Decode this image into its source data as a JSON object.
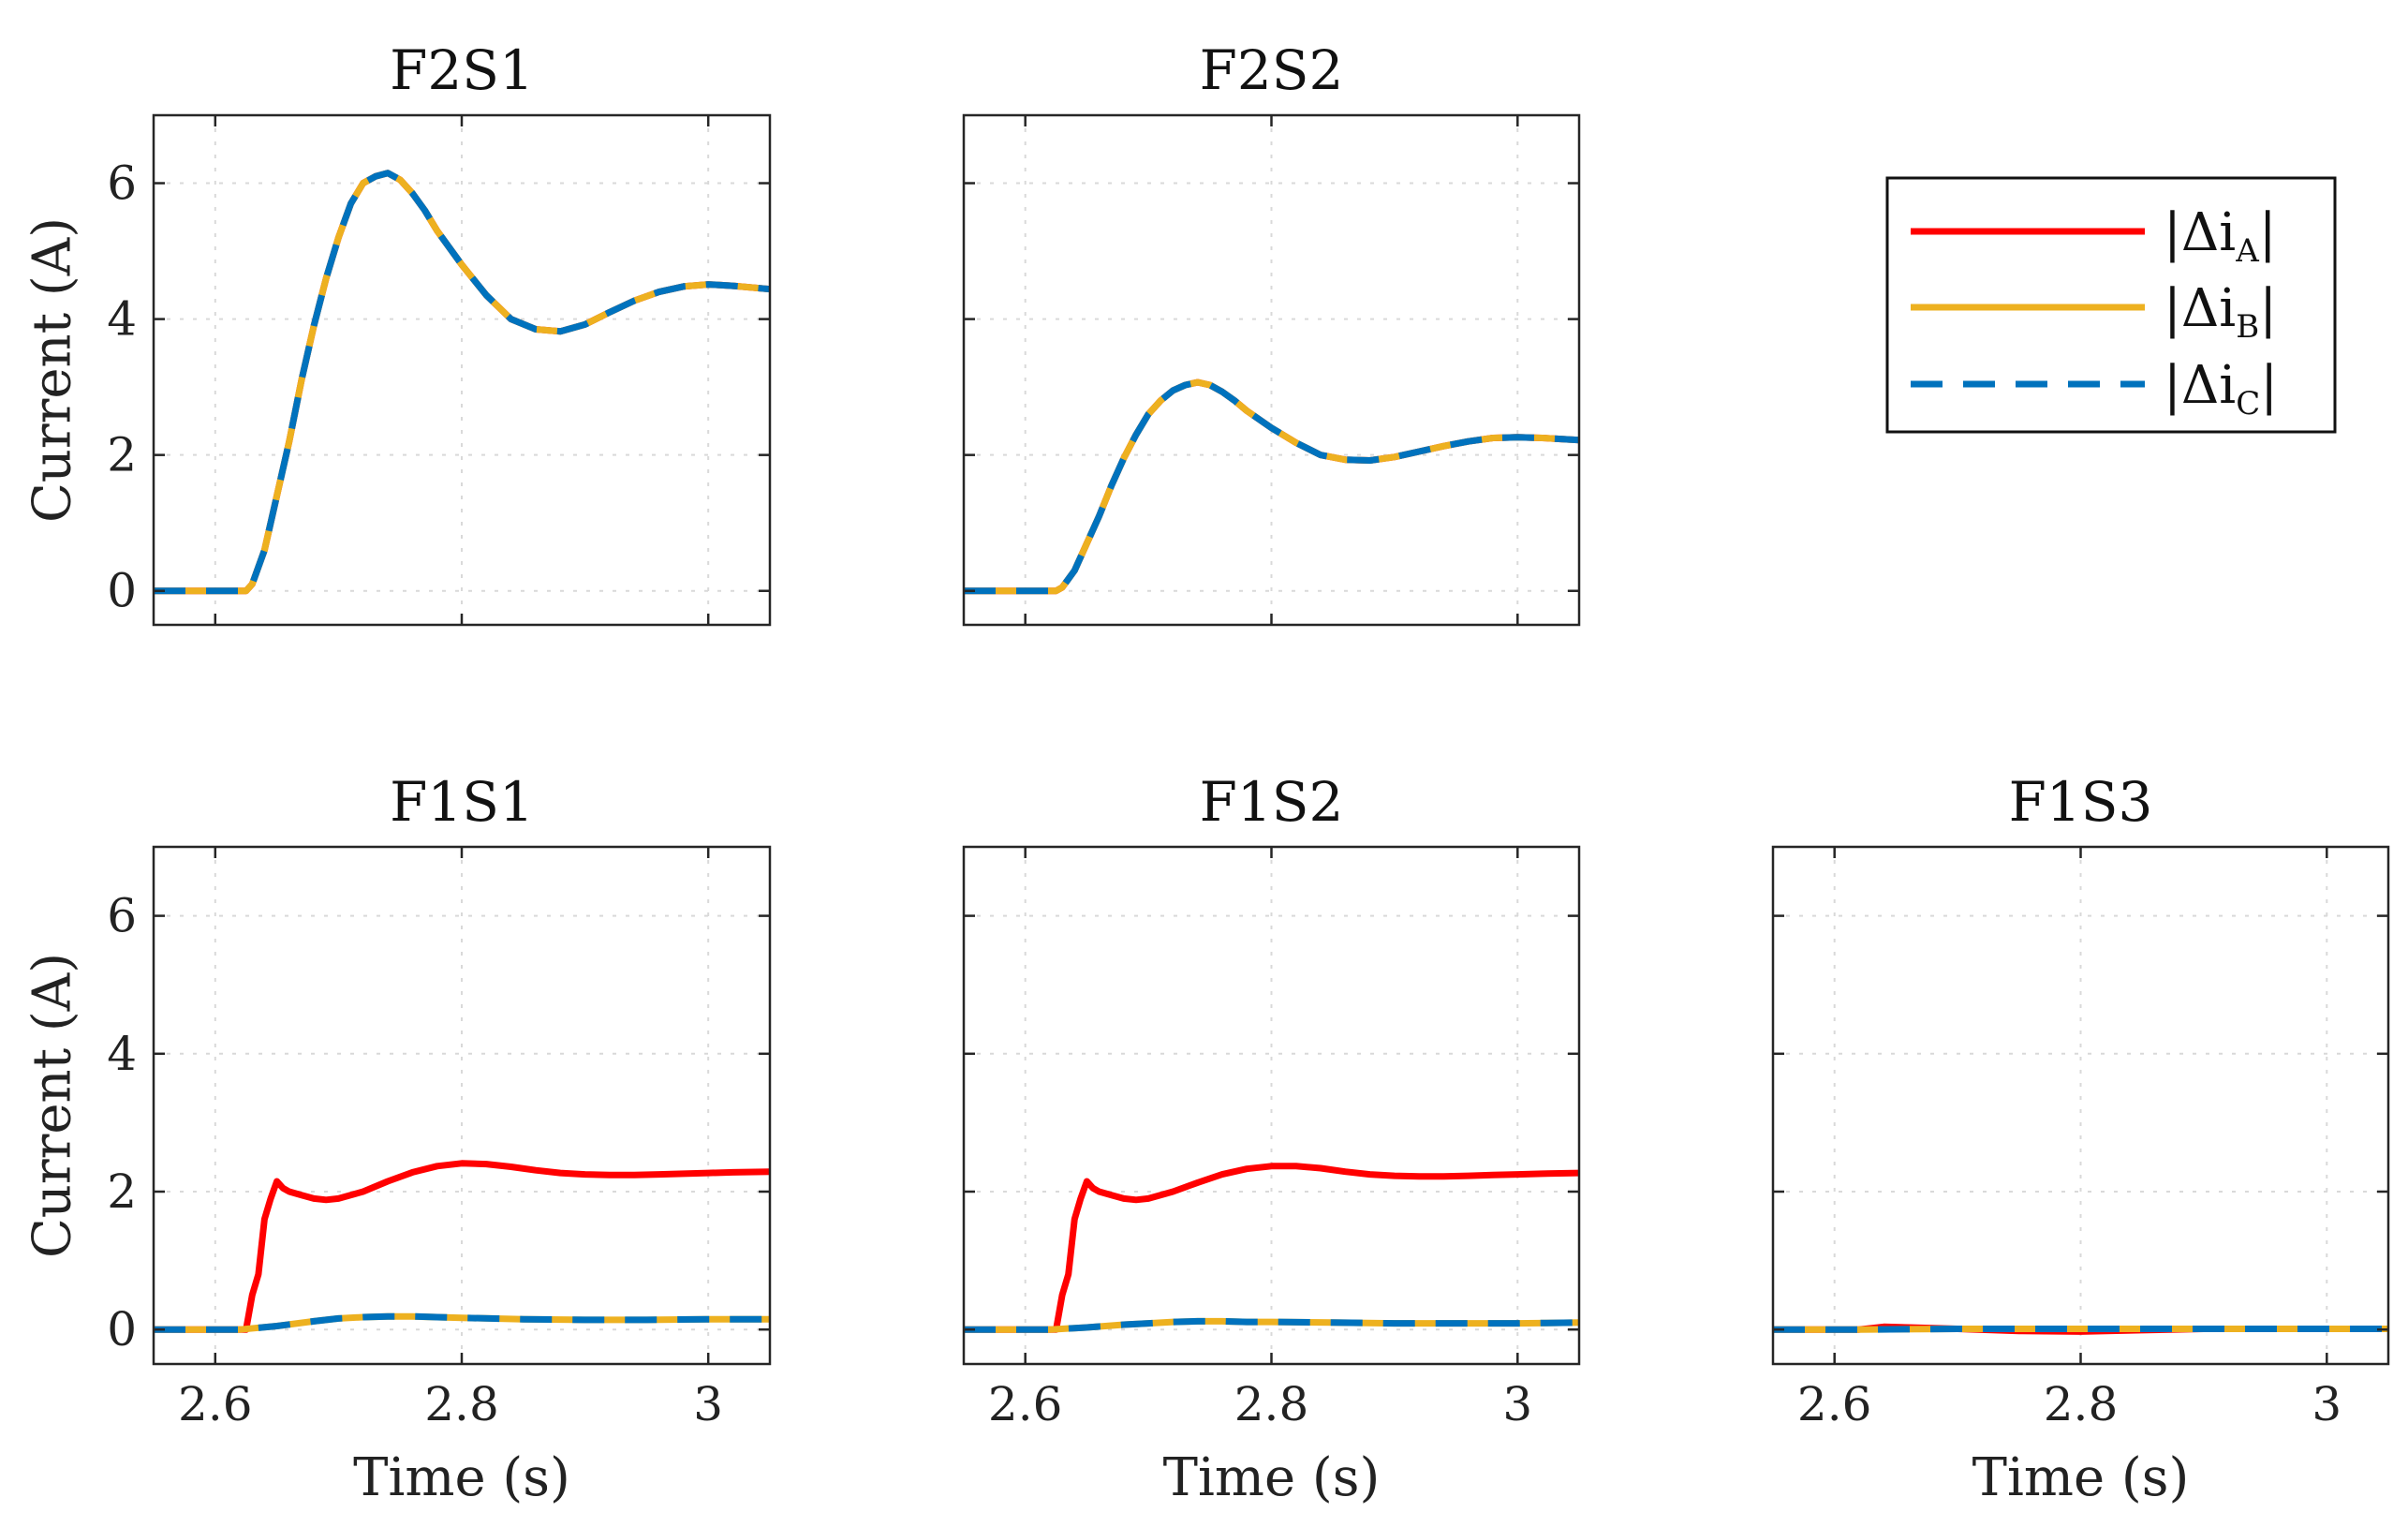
{
  "chart_data": {
    "type": "line",
    "xlim": [
      2.55,
      3.05
    ],
    "ylim": [
      -0.5,
      7
    ],
    "xticks": [
      2.6,
      2.8,
      3
    ],
    "xtick_labels": [
      "2.6",
      "2.8",
      "3"
    ],
    "yticks": [
      0,
      2,
      4,
      6
    ],
    "ytick_labels": [
      "0",
      "2",
      "4",
      "6"
    ],
    "xlabel": "Time (s)",
    "ylabel": "Current (A)",
    "grid": true,
    "legend": {
      "placement": "top-right",
      "entries": [
        {
          "symbol": "|Δi",
          "subscript": "A",
          "close": "|",
          "color": "#ff0000",
          "style": "solid"
        },
        {
          "symbol": "|Δi",
          "subscript": "B",
          "close": "|",
          "color": "#edb120",
          "style": "solid"
        },
        {
          "symbol": "|Δi",
          "subscript": "C",
          "close": "|",
          "color": "#0072bd",
          "style": "dashed"
        }
      ]
    },
    "panels": [
      {
        "title": "F2S1",
        "series": [
          {
            "name": "A",
            "color": "#ff0000",
            "style": "solid",
            "x": [
              2.55,
              2.625,
              2.63,
              2.64,
              2.65,
              2.66,
              2.67,
              2.68,
              2.69,
              2.7,
              2.71,
              2.72,
              2.73,
              2.74,
              2.75,
              2.76,
              2.77,
              2.78,
              2.8,
              2.82,
              2.84,
              2.86,
              2.88,
              2.9,
              2.92,
              2.94,
              2.96,
              2.98,
              3.0,
              3.02,
              3.05
            ],
            "y": [
              0,
              0,
              0.1,
              0.6,
              1.4,
              2.2,
              3.1,
              3.9,
              4.6,
              5.2,
              5.7,
              6.0,
              6.1,
              6.15,
              6.05,
              5.85,
              5.6,
              5.3,
              4.8,
              4.35,
              4.0,
              3.85,
              3.82,
              3.92,
              4.1,
              4.27,
              4.4,
              4.48,
              4.51,
              4.49,
              4.44
            ]
          },
          {
            "name": "B",
            "color": "#edb120",
            "style": "solid",
            "x": [
              2.55,
              2.625,
              2.63,
              2.64,
              2.65,
              2.66,
              2.67,
              2.68,
              2.69,
              2.7,
              2.71,
              2.72,
              2.73,
              2.74,
              2.75,
              2.76,
              2.77,
              2.78,
              2.8,
              2.82,
              2.84,
              2.86,
              2.88,
              2.9,
              2.92,
              2.94,
              2.96,
              2.98,
              3.0,
              3.02,
              3.05
            ],
            "y": [
              0,
              0,
              0.1,
              0.6,
              1.4,
              2.2,
              3.1,
              3.9,
              4.6,
              5.2,
              5.7,
              6.0,
              6.1,
              6.15,
              6.05,
              5.85,
              5.6,
              5.3,
              4.8,
              4.35,
              4.0,
              3.85,
              3.82,
              3.92,
              4.1,
              4.27,
              4.4,
              4.48,
              4.51,
              4.49,
              4.44
            ]
          },
          {
            "name": "C",
            "color": "#0072bd",
            "style": "dashed",
            "x": [
              2.55,
              2.625,
              2.63,
              2.64,
              2.65,
              2.66,
              2.67,
              2.68,
              2.69,
              2.7,
              2.71,
              2.72,
              2.73,
              2.74,
              2.75,
              2.76,
              2.77,
              2.78,
              2.8,
              2.82,
              2.84,
              2.86,
              2.88,
              2.9,
              2.92,
              2.94,
              2.96,
              2.98,
              3.0,
              3.02,
              3.05
            ],
            "y": [
              0,
              0,
              0.1,
              0.6,
              1.4,
              2.2,
              3.1,
              3.9,
              4.6,
              5.2,
              5.7,
              6.0,
              6.1,
              6.15,
              6.05,
              5.85,
              5.6,
              5.3,
              4.8,
              4.35,
              4.0,
              3.85,
              3.82,
              3.92,
              4.1,
              4.27,
              4.4,
              4.48,
              4.51,
              4.49,
              4.44
            ]
          }
        ]
      },
      {
        "title": "F2S2",
        "series": [
          {
            "name": "A",
            "color": "#ff0000",
            "style": "solid",
            "x": [
              2.55,
              2.625,
              2.63,
              2.64,
              2.65,
              2.66,
              2.67,
              2.68,
              2.69,
              2.7,
              2.71,
              2.72,
              2.73,
              2.74,
              2.75,
              2.76,
              2.77,
              2.78,
              2.8,
              2.82,
              2.84,
              2.86,
              2.88,
              2.9,
              2.92,
              2.94,
              2.96,
              2.98,
              3.0,
              3.02,
              3.05
            ],
            "y": [
              0,
              0,
              0.05,
              0.3,
              0.7,
              1.1,
              1.55,
              1.95,
              2.3,
              2.6,
              2.8,
              2.95,
              3.03,
              3.07,
              3.03,
              2.93,
              2.8,
              2.65,
              2.4,
              2.18,
              2.0,
              1.93,
              1.92,
              1.97,
              2.05,
              2.13,
              2.2,
              2.25,
              2.26,
              2.25,
              2.22
            ]
          },
          {
            "name": "B",
            "color": "#edb120",
            "style": "solid",
            "x": [
              2.55,
              2.625,
              2.63,
              2.64,
              2.65,
              2.66,
              2.67,
              2.68,
              2.69,
              2.7,
              2.71,
              2.72,
              2.73,
              2.74,
              2.75,
              2.76,
              2.77,
              2.78,
              2.8,
              2.82,
              2.84,
              2.86,
              2.88,
              2.9,
              2.92,
              2.94,
              2.96,
              2.98,
              3.0,
              3.02,
              3.05
            ],
            "y": [
              0,
              0,
              0.05,
              0.3,
              0.7,
              1.1,
              1.55,
              1.95,
              2.3,
              2.6,
              2.8,
              2.95,
              3.03,
              3.07,
              3.03,
              2.93,
              2.8,
              2.65,
              2.4,
              2.18,
              2.0,
              1.93,
              1.92,
              1.97,
              2.05,
              2.13,
              2.2,
              2.25,
              2.26,
              2.25,
              2.22
            ]
          },
          {
            "name": "C",
            "color": "#0072bd",
            "style": "dashed",
            "x": [
              2.55,
              2.625,
              2.63,
              2.64,
              2.65,
              2.66,
              2.67,
              2.68,
              2.69,
              2.7,
              2.71,
              2.72,
              2.73,
              2.74,
              2.75,
              2.76,
              2.77,
              2.78,
              2.8,
              2.82,
              2.84,
              2.86,
              2.88,
              2.9,
              2.92,
              2.94,
              2.96,
              2.98,
              3.0,
              3.02,
              3.05
            ],
            "y": [
              0,
              0,
              0.05,
              0.3,
              0.7,
              1.1,
              1.55,
              1.95,
              2.3,
              2.6,
              2.8,
              2.95,
              3.03,
              3.07,
              3.03,
              2.93,
              2.8,
              2.65,
              2.4,
              2.18,
              2.0,
              1.93,
              1.92,
              1.97,
              2.05,
              2.13,
              2.2,
              2.25,
              2.26,
              2.25,
              2.22
            ]
          }
        ]
      },
      {
        "title": "F1S1",
        "series": [
          {
            "name": "A",
            "color": "#ff0000",
            "style": "solid",
            "x": [
              2.55,
              2.625,
              2.63,
              2.635,
              2.64,
              2.645,
              2.65,
              2.655,
              2.66,
              2.67,
              2.68,
              2.69,
              2.7,
              2.72,
              2.74,
              2.76,
              2.78,
              2.8,
              2.82,
              2.84,
              2.86,
              2.88,
              2.9,
              2.92,
              2.94,
              2.96,
              2.98,
              3.0,
              3.02,
              3.05
            ],
            "y": [
              0,
              0,
              0.5,
              0.8,
              1.6,
              1.9,
              2.15,
              2.05,
              2.0,
              1.95,
              1.9,
              1.88,
              1.9,
              2.0,
              2.15,
              2.28,
              2.37,
              2.41,
              2.4,
              2.36,
              2.31,
              2.27,
              2.25,
              2.24,
              2.24,
              2.25,
              2.26,
              2.27,
              2.28,
              2.29
            ]
          },
          {
            "name": "B",
            "color": "#edb120",
            "style": "solid",
            "x": [
              2.55,
              2.62,
              2.65,
              2.68,
              2.7,
              2.72,
              2.74,
              2.76,
              2.78,
              2.8,
              2.85,
              2.9,
              2.95,
              3.0,
              3.05
            ],
            "y": [
              0,
              0,
              0.05,
              0.12,
              0.16,
              0.18,
              0.19,
              0.19,
              0.18,
              0.17,
              0.15,
              0.14,
              0.14,
              0.15,
              0.15
            ]
          },
          {
            "name": "C",
            "color": "#0072bd",
            "style": "dashed",
            "x": [
              2.55,
              2.62,
              2.65,
              2.68,
              2.7,
              2.72,
              2.74,
              2.76,
              2.78,
              2.8,
              2.85,
              2.9,
              2.95,
              3.0,
              3.05
            ],
            "y": [
              0,
              0,
              0.05,
              0.12,
              0.16,
              0.18,
              0.19,
              0.19,
              0.18,
              0.17,
              0.15,
              0.14,
              0.14,
              0.15,
              0.15
            ]
          }
        ]
      },
      {
        "title": "F1S2",
        "series": [
          {
            "name": "A",
            "color": "#ff0000",
            "style": "solid",
            "x": [
              2.55,
              2.625,
              2.63,
              2.635,
              2.64,
              2.645,
              2.65,
              2.655,
              2.66,
              2.67,
              2.68,
              2.69,
              2.7,
              2.72,
              2.74,
              2.76,
              2.78,
              2.8,
              2.82,
              2.84,
              2.86,
              2.88,
              2.9,
              2.92,
              2.94,
              2.96,
              2.98,
              3.0,
              3.02,
              3.05
            ],
            "y": [
              0,
              0,
              0.5,
              0.8,
              1.6,
              1.9,
              2.15,
              2.05,
              2.0,
              1.95,
              1.9,
              1.88,
              1.9,
              2.0,
              2.13,
              2.25,
              2.33,
              2.37,
              2.37,
              2.34,
              2.29,
              2.25,
              2.23,
              2.22,
              2.22,
              2.23,
              2.24,
              2.25,
              2.26,
              2.27
            ]
          },
          {
            "name": "B",
            "color": "#edb120",
            "style": "solid",
            "x": [
              2.55,
              2.62,
              2.65,
              2.68,
              2.7,
              2.72,
              2.74,
              2.76,
              2.78,
              2.8,
              2.85,
              2.9,
              2.95,
              3.0,
              3.05
            ],
            "y": [
              0,
              0,
              0.03,
              0.07,
              0.09,
              0.11,
              0.12,
              0.12,
              0.11,
              0.11,
              0.1,
              0.09,
              0.09,
              0.09,
              0.1
            ]
          },
          {
            "name": "C",
            "color": "#0072bd",
            "style": "dashed",
            "x": [
              2.55,
              2.62,
              2.65,
              2.68,
              2.7,
              2.72,
              2.74,
              2.76,
              2.78,
              2.8,
              2.85,
              2.9,
              2.95,
              3.0,
              3.05
            ],
            "y": [
              0,
              0,
              0.03,
              0.07,
              0.09,
              0.11,
              0.12,
              0.12,
              0.11,
              0.11,
              0.1,
              0.09,
              0.09,
              0.09,
              0.1
            ]
          }
        ]
      },
      {
        "title": "F1S3",
        "series": [
          {
            "name": "A",
            "color": "#ff0000",
            "style": "solid",
            "x": [
              2.55,
              2.62,
              2.64,
              2.66,
              2.7,
              2.75,
              2.8,
              2.85,
              2.9,
              3.0,
              3.05
            ],
            "y": [
              0,
              0,
              0.04,
              0.03,
              0.01,
              -0.02,
              -0.03,
              -0.01,
              0.01,
              0.01,
              0.01
            ]
          },
          {
            "name": "B",
            "color": "#edb120",
            "style": "solid",
            "x": [
              2.55,
              2.62,
              2.7,
              2.8,
              2.9,
              3.0,
              3.05
            ],
            "y": [
              0,
              0,
              0.01,
              0.01,
              0.01,
              0.01,
              0.01
            ]
          },
          {
            "name": "C",
            "color": "#0072bd",
            "style": "dashed",
            "x": [
              2.55,
              2.62,
              2.7,
              2.8,
              2.9,
              3.0,
              3.05
            ],
            "y": [
              0,
              0,
              0.01,
              0.01,
              0.01,
              0.01,
              0.01
            ]
          }
        ]
      }
    ]
  }
}
